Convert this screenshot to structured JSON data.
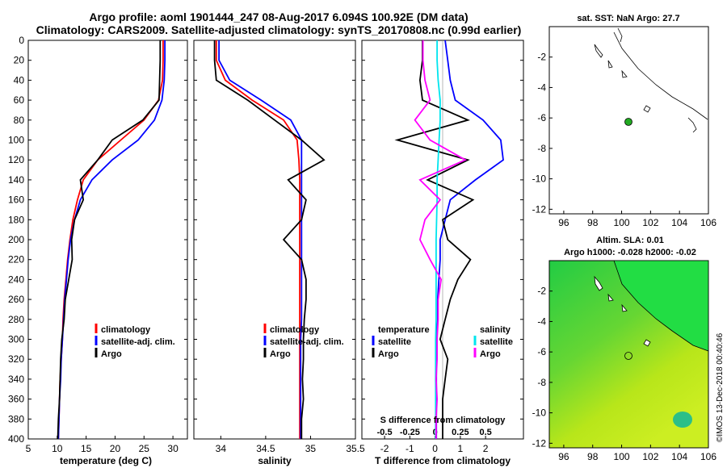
{
  "title_line1": "Argo profile: aoml 1901444_247 08-Aug-2017 6.094S 100.92E (DM data)",
  "title_line2": "Climatology: CARS2009. Satellite-adjusted climatology: synTS_20170808.nc (0.99d earlier)",
  "colors": {
    "clim": "#ff0000",
    "sat": "#0000ff",
    "argo": "#000000",
    "s_sat": "#00e5ee",
    "s_argo": "#ff00ff",
    "dot": "#22aa22"
  },
  "depth_ticks": [
    "0",
    "20",
    "40",
    "60",
    "80",
    "100",
    "120",
    "140",
    "160",
    "180",
    "200",
    "220",
    "240",
    "260",
    "280",
    "300",
    "320",
    "340",
    "360",
    "380",
    "400"
  ],
  "map_top": {
    "title": "sat. SST: NaN Argo: 27.7",
    "y_ticks": [
      "-2",
      "-4",
      "-6",
      "-8",
      "-10",
      "-12"
    ],
    "x_ticks": [
      "96",
      "98",
      "100",
      "102",
      "104",
      "106"
    ]
  },
  "map_bottom": {
    "title1": "Altim. SLA: 0.01",
    "title2": "Argo h1000: -0.028 h2000: -0.02",
    "y_ticks": [
      "-2",
      "-4",
      "-6",
      "-8",
      "-10",
      "-12"
    ],
    "x_ticks": [
      "96",
      "98",
      "100",
      "102",
      "104",
      "106"
    ]
  },
  "credit": "©IMOS 13-Dec-2018 00:40:46",
  "chart_data": [
    {
      "type": "line",
      "panel": "temperature",
      "xlabel": "temperature (deg C)",
      "ylabel": "depth",
      "xlim": [
        5,
        32.5
      ],
      "ylim": [
        400,
        0
      ],
      "x_ticks": [
        "5",
        "10",
        "15",
        "20",
        "25",
        "30"
      ],
      "legend": [
        "climatology",
        "satellite-adj. clim.",
        "Argo"
      ],
      "depths": [
        0,
        20,
        40,
        60,
        80,
        100,
        120,
        140,
        160,
        180,
        200,
        220,
        240,
        260,
        280,
        300,
        320,
        340,
        360,
        380,
        400
      ],
      "series": [
        {
          "name": "climatology",
          "values": [
            28.3,
            28.3,
            28.2,
            27.5,
            25,
            21,
            17,
            14.5,
            13.5,
            12.7,
            12.2,
            11.8,
            11.5,
            11.2,
            11,
            10.9,
            10.7,
            10.5,
            10.4,
            10.3,
            10.2
          ]
        },
        {
          "name": "satellite-adj. clim.",
          "values": [
            28.6,
            28.6,
            28.5,
            28.1,
            26.8,
            24,
            19.5,
            16,
            14,
            13,
            12.3,
            11.9,
            11.6,
            11.3,
            11.1,
            10.9,
            10.7,
            10.6,
            10.4,
            10.3,
            10.2
          ]
        },
        {
          "name": "Argo",
          "values": [
            27.8,
            27.8,
            27.7,
            27.6,
            24.8,
            19.5,
            17,
            14,
            14.5,
            13,
            12.5,
            12.6,
            12,
            11.4,
            11.2,
            10.8,
            10.6,
            10.5,
            10.4,
            10.2,
            10.1
          ]
        }
      ]
    },
    {
      "type": "line",
      "panel": "salinity",
      "xlabel": "salinity",
      "xlim": [
        33.7,
        35.5
      ],
      "ylim": [
        400,
        0
      ],
      "x_ticks": [
        "34",
        "34.5",
        "35",
        "35.5"
      ],
      "legend": [
        "climatology",
        "satellite-adj. clim.",
        "Argo"
      ],
      "depths": [
        0,
        20,
        40,
        60,
        80,
        100,
        120,
        140,
        160,
        180,
        200,
        220,
        240,
        260,
        280,
        300,
        320,
        340,
        360,
        380,
        400
      ],
      "series": [
        {
          "name": "climatology",
          "values": [
            33.95,
            33.95,
            34.05,
            34.35,
            34.7,
            34.85,
            34.87,
            34.88,
            34.88,
            34.88,
            34.88,
            34.88,
            34.88,
            34.88,
            34.88,
            34.88,
            34.88,
            34.88,
            34.88,
            34.88,
            34.88
          ]
        },
        {
          "name": "satellite-adj. clim.",
          "values": [
            33.98,
            33.98,
            34.1,
            34.45,
            34.78,
            34.9,
            34.9,
            34.9,
            34.9,
            34.9,
            34.9,
            34.9,
            34.9,
            34.9,
            34.9,
            34.89,
            34.89,
            34.89,
            34.89,
            34.89,
            34.89
          ]
        },
        {
          "name": "Argo",
          "values": [
            33.93,
            33.93,
            33.95,
            34.3,
            34.6,
            34.9,
            35.15,
            34.75,
            34.95,
            34.9,
            34.7,
            34.9,
            34.95,
            34.95,
            34.93,
            34.92,
            34.92,
            34.91,
            34.92,
            34.9,
            34.9
          ]
        }
      ]
    },
    {
      "type": "line",
      "panel": "difference",
      "xlabel": "T difference from climatology",
      "xlabel_top": "S difference from climatology",
      "xlim": [
        -2.9,
        3.5
      ],
      "ylim": [
        400,
        0
      ],
      "x_ticks": [
        "-2",
        "-1",
        "0",
        "1",
        "2"
      ],
      "x_ticks_top": [
        "-0.5",
        "-0.25",
        "0",
        "0.25",
        "0.5"
      ],
      "legend_temperature": {
        "title": "temperature",
        "items": [
          "satellite",
          "Argo"
        ]
      },
      "legend_salinity": {
        "title": "salinity",
        "items": [
          "satellite",
          "Argo"
        ]
      },
      "depths": [
        0,
        20,
        40,
        60,
        80,
        100,
        120,
        140,
        160,
        180,
        200,
        220,
        240,
        260,
        280,
        300,
        320,
        340,
        360,
        380,
        400
      ],
      "series": [
        {
          "name": "T satellite",
          "values": [
            0.4,
            0.5,
            0.6,
            0.8,
            1.9,
            2.6,
            2.7,
            1.6,
            0.6,
            0.4,
            0.2,
            0.2,
            0.15,
            0.1,
            0.1,
            0.05,
            0.05,
            0.05,
            0.05,
            0.05,
            0.05
          ]
        },
        {
          "name": "T Argo",
          "values": [
            -0.5,
            -0.5,
            -0.6,
            -0.5,
            1.3,
            -1.5,
            1.3,
            -0.3,
            1.5,
            0.3,
            0.5,
            1.4,
            0.9,
            0.6,
            0.4,
            0.2,
            0.5,
            0.4,
            0.3,
            0.3,
            0.3
          ]
        },
        {
          "name": "S satellite",
          "values": [
            0.02,
            0.02,
            0.03,
            0.05,
            0.05,
            0.04,
            0.03,
            0.02,
            0.02,
            0.015,
            0.01,
            0.01,
            0.01,
            0.01,
            0.01,
            0.005,
            0.005,
            0.005,
            0.005,
            0.005,
            0.005
          ]
        },
        {
          "name": "S Argo",
          "values": [
            -0.12,
            -0.12,
            -0.1,
            -0.05,
            -0.2,
            -0.05,
            0.3,
            -0.15,
            0.05,
            -0.1,
            -0.15,
            -0.05,
            0.06,
            0.03,
            0.03,
            0.02,
            0.02,
            0.01,
            0.02,
            0.01,
            0.01
          ]
        }
      ]
    }
  ]
}
